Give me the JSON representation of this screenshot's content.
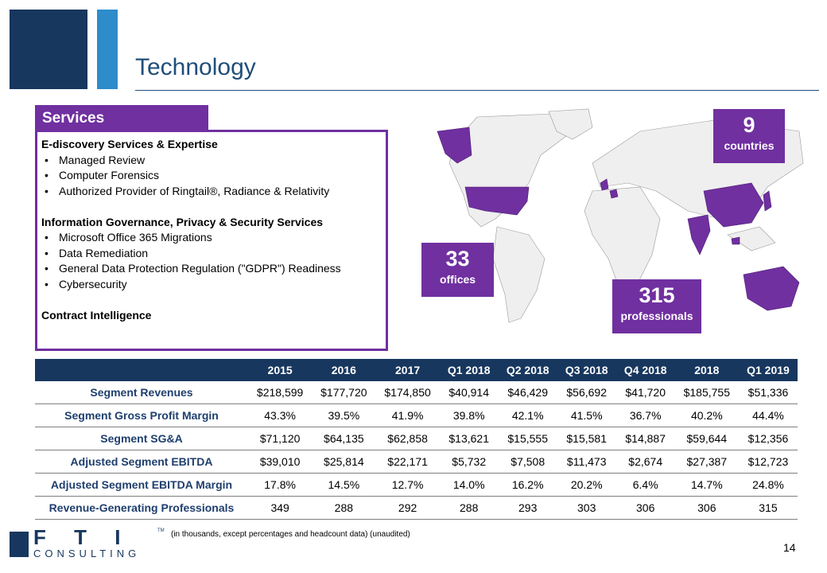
{
  "header": {
    "title": "Technology"
  },
  "services": {
    "title": "Services",
    "sections": [
      {
        "heading": "E-discovery Services & Expertise",
        "items": [
          "Managed Review",
          "Computer Forensics",
          "Authorized Provider of Ringtail®, Radiance & Relativity"
        ]
      },
      {
        "heading": "Information Governance, Privacy & Security Services",
        "items": [
          "Microsoft Office 365 Migrations",
          "Data Remediation",
          "General Data Protection Regulation (\"GDPR\")  Readiness",
          "Cybersecurity"
        ]
      },
      {
        "heading": "Contract Intelligence"
      }
    ]
  },
  "stats": [
    {
      "value": 9,
      "label": "countries"
    },
    {
      "value": 33,
      "label": "offices"
    },
    {
      "value": 315,
      "label": "professionals"
    }
  ],
  "table": {
    "columns": [
      "2015",
      "2016",
      "2017",
      "Q1 2018",
      "Q2 2018",
      "Q3 2018",
      "Q4 2018",
      "2018",
      "Q1 2019"
    ],
    "rows": [
      [
        "Segment Revenues",
        "$218,599",
        "$177,720",
        "$174,850",
        "$40,914",
        "$46,429",
        "$56,692",
        "$41,720",
        "$185,755",
        "$51,336"
      ],
      [
        "Segment Gross Profit Margin",
        "43.3%",
        "39.5%",
        "41.9%",
        "39.8%",
        "42.1%",
        "41.5%",
        "36.7%",
        "40.2%",
        "44.4%"
      ],
      [
        "Segment SG&A",
        "$71,120",
        "$64,135",
        "$62,858",
        "$13,621",
        "$15,555",
        "$15,581",
        "$14,887",
        "$59,644",
        "$12,356"
      ],
      [
        "Adjusted Segment EBITDA",
        "$39,010",
        "$25,814",
        "$22,171",
        "$5,732",
        "$7,508",
        "$11,473",
        "$2,674",
        "$27,387",
        "$12,723"
      ],
      [
        "Adjusted Segment EBITDA Margin",
        "17.8%",
        "14.5%",
        "12.7%",
        "14.0%",
        "16.2%",
        "20.2%",
        "6.4%",
        "14.7%",
        "24.8%"
      ],
      [
        "Revenue-Generating Professionals",
        "349",
        "288",
        "292",
        "288",
        "293",
        "303",
        "306",
        "306",
        "315"
      ]
    ]
  },
  "footer": {
    "logo": "F T I",
    "logo_sub": "CONSULTING",
    "logo_tm": "TM",
    "note": "(in thousands, except percentages and headcount data) (unaudited)",
    "page": 14
  }
}
